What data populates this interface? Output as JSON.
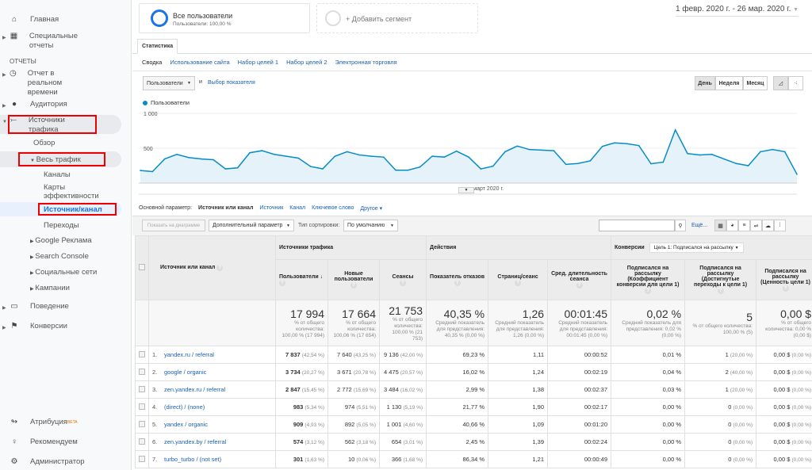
{
  "sidebar": {
    "home": "Главная",
    "custom": "Специальные отчеты",
    "reports_label": "ОТЧЕТЫ",
    "realtime": "Отчет в реальном времени",
    "audience": "Аудитория",
    "acquisition": "Источники трафика",
    "overview": "Обзор",
    "all_traffic": "Весь трафик",
    "channels": "Каналы",
    "treemaps": "Карты эффективности",
    "source_medium": "Источник/канал",
    "referrals": "Переходы",
    "google_ads": "Google Реклама",
    "search_console": "Search Console",
    "social": "Социальные сети",
    "campaigns": "Кампании",
    "behavior": "Поведение",
    "conversions": "Конверсии",
    "attribution": "Атрибуция",
    "beta": "BETA",
    "discover": "Рекомендуем",
    "admin": "Администратор"
  },
  "segment": {
    "name": "Все пользователи",
    "sub": "Пользователи: 100,00 %",
    "add": "+ Добавить сегмент"
  },
  "date_range": "1 февр. 2020 г. - 26 мар. 2020 г.",
  "tabs": {
    "active": "Статистика",
    "subtabs": [
      "Сводка",
      "Использование сайта",
      "Набор целей 1",
      "Набор целей 2",
      "Электронная торговля"
    ]
  },
  "chart_controls": {
    "metric": "Пользователи",
    "and": "и",
    "select_metric": "Выбор показателя",
    "day": "День",
    "week": "Неделя",
    "month": "Месяц"
  },
  "chart_data": {
    "type": "area",
    "series": [
      {
        "name": "Пользователи",
        "values": [
          181,
          165,
          346,
          412,
          365,
          346,
          335,
          204,
          219,
          435,
          465,
          412,
          385,
          358,
          238,
          204,
          385,
          450,
          404,
          385,
          373,
          185,
          185,
          231,
          385,
          373,
          458,
          373,
          204,
          242,
          450,
          531,
          481,
          473,
          465,
          269,
          281,
          319,
          527,
          577,
          565,
          538,
          277,
          300,
          762,
          423,
          404,
          412,
          346,
          281,
          250,
          450,
          481,
          450,
          127
        ]
      }
    ],
    "x_range": [
      "2020-02-01",
      "2020-03-26"
    ],
    "x_tick_labels": [
      "март 2020 г."
    ],
    "y_tick_labels": [
      "1 000",
      "500"
    ],
    "ylim": [
      0,
      1000
    ],
    "color": "#058dc7"
  },
  "dimension": {
    "label": "Основной параметр:",
    "active": "Источник или канал",
    "options": [
      "Источник",
      "Канал",
      "Ключевое слово",
      "Другое"
    ]
  },
  "toolbar": {
    "plot": "Показать на диаграмме",
    "secondary": "Дополнительный параметр",
    "sort_label": "Тип сортировки:",
    "sort": "По умолчанию",
    "more": "Ещё..."
  },
  "table": {
    "groups": {
      "acq": "Источники трафика",
      "beh": "Действия",
      "conv": "Конверсии",
      "goal": "Цель 1: Подписался на рассылку"
    },
    "headers": [
      "Источник или канал",
      "Пользователи",
      "Новые пользователи",
      "Сеансы",
      "Показатель отказов",
      "Страниц/сеанс",
      "Сред. длительность сеанса",
      "Подписался на рассылку (Коэффициент конверсии для цели 1)",
      "Подписался на рассылку (Достигнутые переходы к цели 1)",
      "Подписался на рассылку (Ценность цели 1)"
    ],
    "totals": [
      {
        "v": "17 994",
        "s": "% от общего количества: 100,00 % (17 994)"
      },
      {
        "v": "17 664",
        "s": "% от общего количества: 100,06 % (17 654)"
      },
      {
        "v": "21 753",
        "s": "% от общего количества: 100,00 % (21 753)"
      },
      {
        "v": "40,35 %",
        "s": "Средний показатель для представления: 40,35 % (0,00 %)"
      },
      {
        "v": "1,26",
        "s": "Средний показатель для представления: 1,26 (0,00 %)"
      },
      {
        "v": "00:01:45",
        "s": "Средний показатель для представления: 00:01:45 (0,00 %)"
      },
      {
        "v": "0,02 %",
        "s": "Средний показатель для представления: 0,02 % (0,00 %)"
      },
      {
        "v": "5",
        "s": "% от общего количества: 100,00 % (5)"
      },
      {
        "v": "0,00 $",
        "s": "% от общего количества: 0,00 % (0,00 $)"
      }
    ],
    "rows": [
      {
        "n": "1.",
        "src": "yandex.ru / referral",
        "u": "7 837",
        "up": "(42,54 %)",
        "nu": "7 640",
        "nup": "(43,25 %)",
        "s": "9 136",
        "sp": "(42,00 %)",
        "b": "69,23 %",
        "p": "1,11",
        "d": "00:00:52",
        "cr": "0,01 %",
        "g": "1",
        "gp": "(20,00 %)",
        "val": "0,00 $",
        "vp": "(0,00 %)"
      },
      {
        "n": "2.",
        "src": "google / organic",
        "u": "3 734",
        "up": "(20,27 %)",
        "nu": "3 671",
        "nup": "(20,78 %)",
        "s": "4 475",
        "sp": "(20,57 %)",
        "b": "16,02 %",
        "p": "1,24",
        "d": "00:02:19",
        "cr": "0,04 %",
        "g": "2",
        "gp": "(40,00 %)",
        "val": "0,00 $",
        "vp": "(0,00 %)"
      },
      {
        "n": "3.",
        "src": "zen.yandex.ru / referral",
        "u": "2 847",
        "up": "(15,45 %)",
        "nu": "2 772",
        "nup": "(15,69 %)",
        "s": "3 484",
        "sp": "(16,02 %)",
        "b": "2,99 %",
        "p": "1,38",
        "d": "00:02:37",
        "cr": "0,03 %",
        "g": "1",
        "gp": "(20,00 %)",
        "val": "0,00 $",
        "vp": "(0,00 %)"
      },
      {
        "n": "4.",
        "src": "(direct) / (none)",
        "u": "983",
        "up": "(5,34 %)",
        "nu": "974",
        "nup": "(5,51 %)",
        "s": "1 130",
        "sp": "(5,19 %)",
        "b": "21,77 %",
        "p": "1,90",
        "d": "00:02:17",
        "cr": "0,00 %",
        "g": "0",
        "gp": "(0,00 %)",
        "val": "0,00 $",
        "vp": "(0,00 %)"
      },
      {
        "n": "5.",
        "src": "yandex / organic",
        "u": "909",
        "up": "(4,93 %)",
        "nu": "892",
        "nup": "(5,05 %)",
        "s": "1 001",
        "sp": "(4,60 %)",
        "b": "40,66 %",
        "p": "1,09",
        "d": "00:01:20",
        "cr": "0,00 %",
        "g": "0",
        "gp": "(0,00 %)",
        "val": "0,00 $",
        "vp": "(0,00 %)"
      },
      {
        "n": "6.",
        "src": "zen.yandex.by / referral",
        "u": "574",
        "up": "(3,12 %)",
        "nu": "562",
        "nup": "(3,18 %)",
        "s": "654",
        "sp": "(3,01 %)",
        "b": "2,45 %",
        "p": "1,39",
        "d": "00:02:24",
        "cr": "0,00 %",
        "g": "0",
        "gp": "(0,00 %)",
        "val": "0,00 $",
        "vp": "(0,00 %)"
      },
      {
        "n": "7.",
        "src": "turbo_turbo / (not set)",
        "u": "301",
        "up": "(1,63 %)",
        "nu": "10",
        "nup": "(0,06 %)",
        "s": "366",
        "sp": "(1,68 %)",
        "b": "86,34 %",
        "p": "1,21",
        "d": "00:00:49",
        "cr": "0,00 %",
        "g": "0",
        "gp": "(0,00 %)",
        "val": "0,00 $",
        "vp": "(0,00 %)"
      }
    ]
  }
}
